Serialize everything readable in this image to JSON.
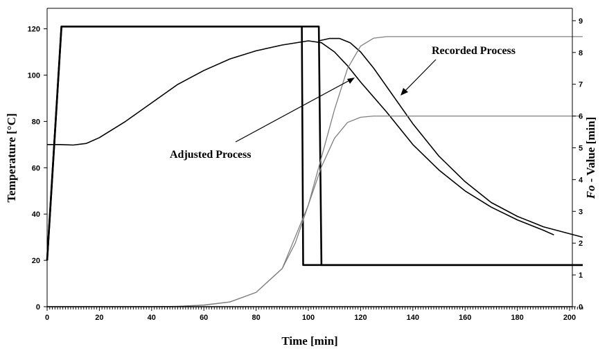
{
  "chart_data": {
    "type": "line",
    "title": "",
    "xlabel": "Time [min]",
    "ylabel_left": "Temperature [°C]",
    "ylabel_right_prefix": "Fo",
    "ylabel_right_suffix": " - Value [min]",
    "xlim": [
      0,
      205
    ],
    "ylim_left": [
      0,
      130
    ],
    "ylim_right": [
      0,
      9
    ],
    "x_ticks": [
      0,
      20,
      40,
      60,
      80,
      100,
      120,
      140,
      160,
      180,
      200
    ],
    "y_ticks_left": [
      0,
      20,
      40,
      60,
      80,
      100,
      120
    ],
    "y_ticks_right": [
      0,
      1,
      2,
      3,
      4,
      5,
      6,
      7,
      8,
      9
    ],
    "grid": false,
    "annotations": [
      {
        "text": "Recorded Process",
        "target": "recorded-core-temperature"
      },
      {
        "text": "Adjusted Process",
        "target": "adjusted-core-temperature"
      }
    ],
    "series": [
      {
        "id": "adjusted-chamber-temperature",
        "axis": "left",
        "color": "#000000",
        "weight": "heavy",
        "x": [
          0,
          5.5,
          97.5,
          98,
          205
        ],
        "y": [
          20,
          121,
          121,
          18,
          18
        ]
      },
      {
        "id": "recorded-chamber-temperature",
        "axis": "left",
        "color": "#000000",
        "weight": "heavy",
        "x": [
          0,
          5.5,
          104,
          105,
          205
        ],
        "y": [
          20,
          121,
          121,
          18,
          18
        ]
      },
      {
        "id": "adjusted-core-temperature",
        "axis": "left",
        "color": "#000000",
        "weight": "normal",
        "x": [
          0,
          5,
          10,
          15,
          20,
          30,
          40,
          50,
          60,
          70,
          80,
          90,
          100,
          105,
          110,
          115,
          120,
          130,
          140,
          150,
          160,
          170,
          180,
          190,
          194
        ],
        "y": [
          70,
          70,
          69.8,
          70.5,
          73,
          80,
          88,
          96,
          102,
          107,
          110.5,
          113,
          114.8,
          114,
          110,
          104,
          97,
          84,
          70,
          59,
          50,
          43,
          37.5,
          33,
          31
        ]
      },
      {
        "id": "recorded-core-temperature",
        "axis": "left",
        "color": "#000000",
        "weight": "normal",
        "x": [
          104,
          108,
          112,
          116,
          120,
          125,
          130,
          140,
          150,
          160,
          170,
          180,
          190,
          200,
          205
        ],
        "y": [
          114.8,
          115.8,
          115.8,
          114,
          110,
          103,
          95,
          79,
          65,
          54,
          45,
          39,
          34.5,
          31.5,
          30
        ]
      },
      {
        "id": "recorded-fo-value",
        "axis": "right",
        "color": "#7f7f7f",
        "weight": "normal",
        "x": [
          0,
          40,
          50,
          60,
          70,
          80,
          90,
          100,
          105,
          110,
          115,
          120,
          125,
          130,
          135,
          140,
          205
        ],
        "y": [
          0,
          0,
          0.01,
          0.05,
          0.15,
          0.45,
          1.2,
          3.2,
          4.7,
          6.2,
          7.5,
          8.2,
          8.45,
          8.5,
          8.5,
          8.5,
          8.5
        ]
      },
      {
        "id": "adjusted-fo-value",
        "axis": "right",
        "color": "#7f7f7f",
        "weight": "normal",
        "x": [
          0,
          40,
          50,
          60,
          70,
          80,
          90,
          95,
          100,
          105,
          110,
          115,
          120,
          125,
          130,
          205
        ],
        "y": [
          0,
          0,
          0.01,
          0.05,
          0.15,
          0.45,
          1.2,
          2.0,
          3.2,
          4.4,
          5.3,
          5.8,
          5.96,
          6.0,
          6.0,
          6.0
        ]
      }
    ]
  }
}
